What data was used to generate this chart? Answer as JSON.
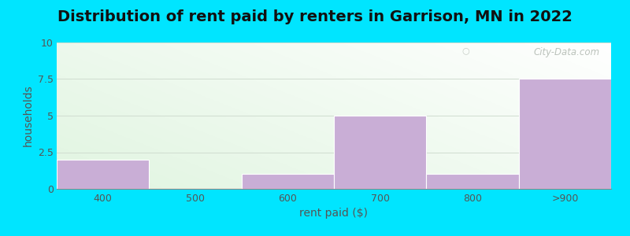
{
  "title": "Distribution of rent paid by renters in Garrison, MN in 2022",
  "xlabel": "rent paid ($)",
  "ylabel": "households",
  "categories": [
    "400",
    "500",
    "600",
    "700",
    "800",
    ">900"
  ],
  "values": [
    2,
    0,
    1,
    5,
    1,
    7.5
  ],
  "bar_color": "#c9aed6",
  "bar_edge_color": "#c9aed6",
  "ylim": [
    0,
    10
  ],
  "yticks": [
    0,
    2.5,
    5,
    7.5,
    10
  ],
  "ytick_labels": [
    "0",
    "2.5",
    "5",
    "7.5",
    "10"
  ],
  "outer_background": "#00e5ff",
  "title_fontsize": 14,
  "axis_label_fontsize": 10,
  "tick_fontsize": 9,
  "title_color": "#111111",
  "axis_label_color": "#555555",
  "tick_color": "#555555",
  "watermark_text": "City-Data.com",
  "watermark_color": "#b0b8b0",
  "grid_color": "#d0ddd0",
  "grid_linewidth": 0.7
}
